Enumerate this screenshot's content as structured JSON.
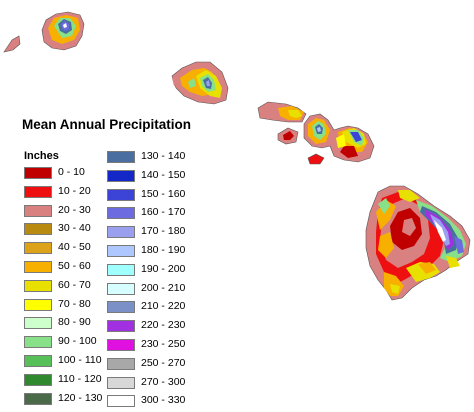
{
  "legend": {
    "title": "Mean Annual Precipitation",
    "units": "Inches",
    "columns": [
      [
        {
          "label": "0 - 10",
          "color": "#c00000"
        },
        {
          "label": "10 - 20",
          "color": "#ee1010"
        },
        {
          "label": "20 - 30",
          "color": "#d98080"
        },
        {
          "label": "30 - 40",
          "color": "#b88a10"
        },
        {
          "label": "40 - 50",
          "color": "#dca21a"
        },
        {
          "label": "50 - 60",
          "color": "#f8b000"
        },
        {
          "label": "60 - 70",
          "color": "#e8e000"
        },
        {
          "label": "70 - 80",
          "color": "#ffff00"
        },
        {
          "label": "80 - 90",
          "color": "#ccffcc"
        },
        {
          "label": "90 - 100",
          "color": "#88e088"
        },
        {
          "label": "100 - 110",
          "color": "#58c058"
        },
        {
          "label": "110 - 120",
          "color": "#2f8a2f"
        },
        {
          "label": "120 - 130",
          "color": "#4a6a4a"
        }
      ],
      [
        {
          "label": "130 - 140",
          "color": "#4a6ea0"
        },
        {
          "label": "140 - 150",
          "color": "#1428c8"
        },
        {
          "label": "150 - 160",
          "color": "#3c44d8"
        },
        {
          "label": "160 - 170",
          "color": "#6c6ce0"
        },
        {
          "label": "170 - 180",
          "color": "#9aa0ee"
        },
        {
          "label": "180 - 190",
          "color": "#aec8ff"
        },
        {
          "label": "190 - 200",
          "color": "#a0ffff"
        },
        {
          "label": "200 - 210",
          "color": "#d8ffff"
        },
        {
          "label": "210 - 220",
          "color": "#7c90c8"
        },
        {
          "label": "220 - 230",
          "color": "#a030e0"
        },
        {
          "label": "230 - 250",
          "color": "#e010e0"
        },
        {
          "label": "250 - 270",
          "color": "#a8a8a8"
        },
        {
          "label": "270 - 300",
          "color": "#d8d8d8"
        },
        {
          "label": "300 - 330",
          "color": "#ffffff"
        }
      ]
    ]
  },
  "islands": [
    {
      "name": "Kauai"
    },
    {
      "name": "Niihau"
    },
    {
      "name": "Oahu"
    },
    {
      "name": "Molokai"
    },
    {
      "name": "Lanai"
    },
    {
      "name": "Maui"
    },
    {
      "name": "Kahoolawe"
    },
    {
      "name": "Hawaii"
    }
  ]
}
